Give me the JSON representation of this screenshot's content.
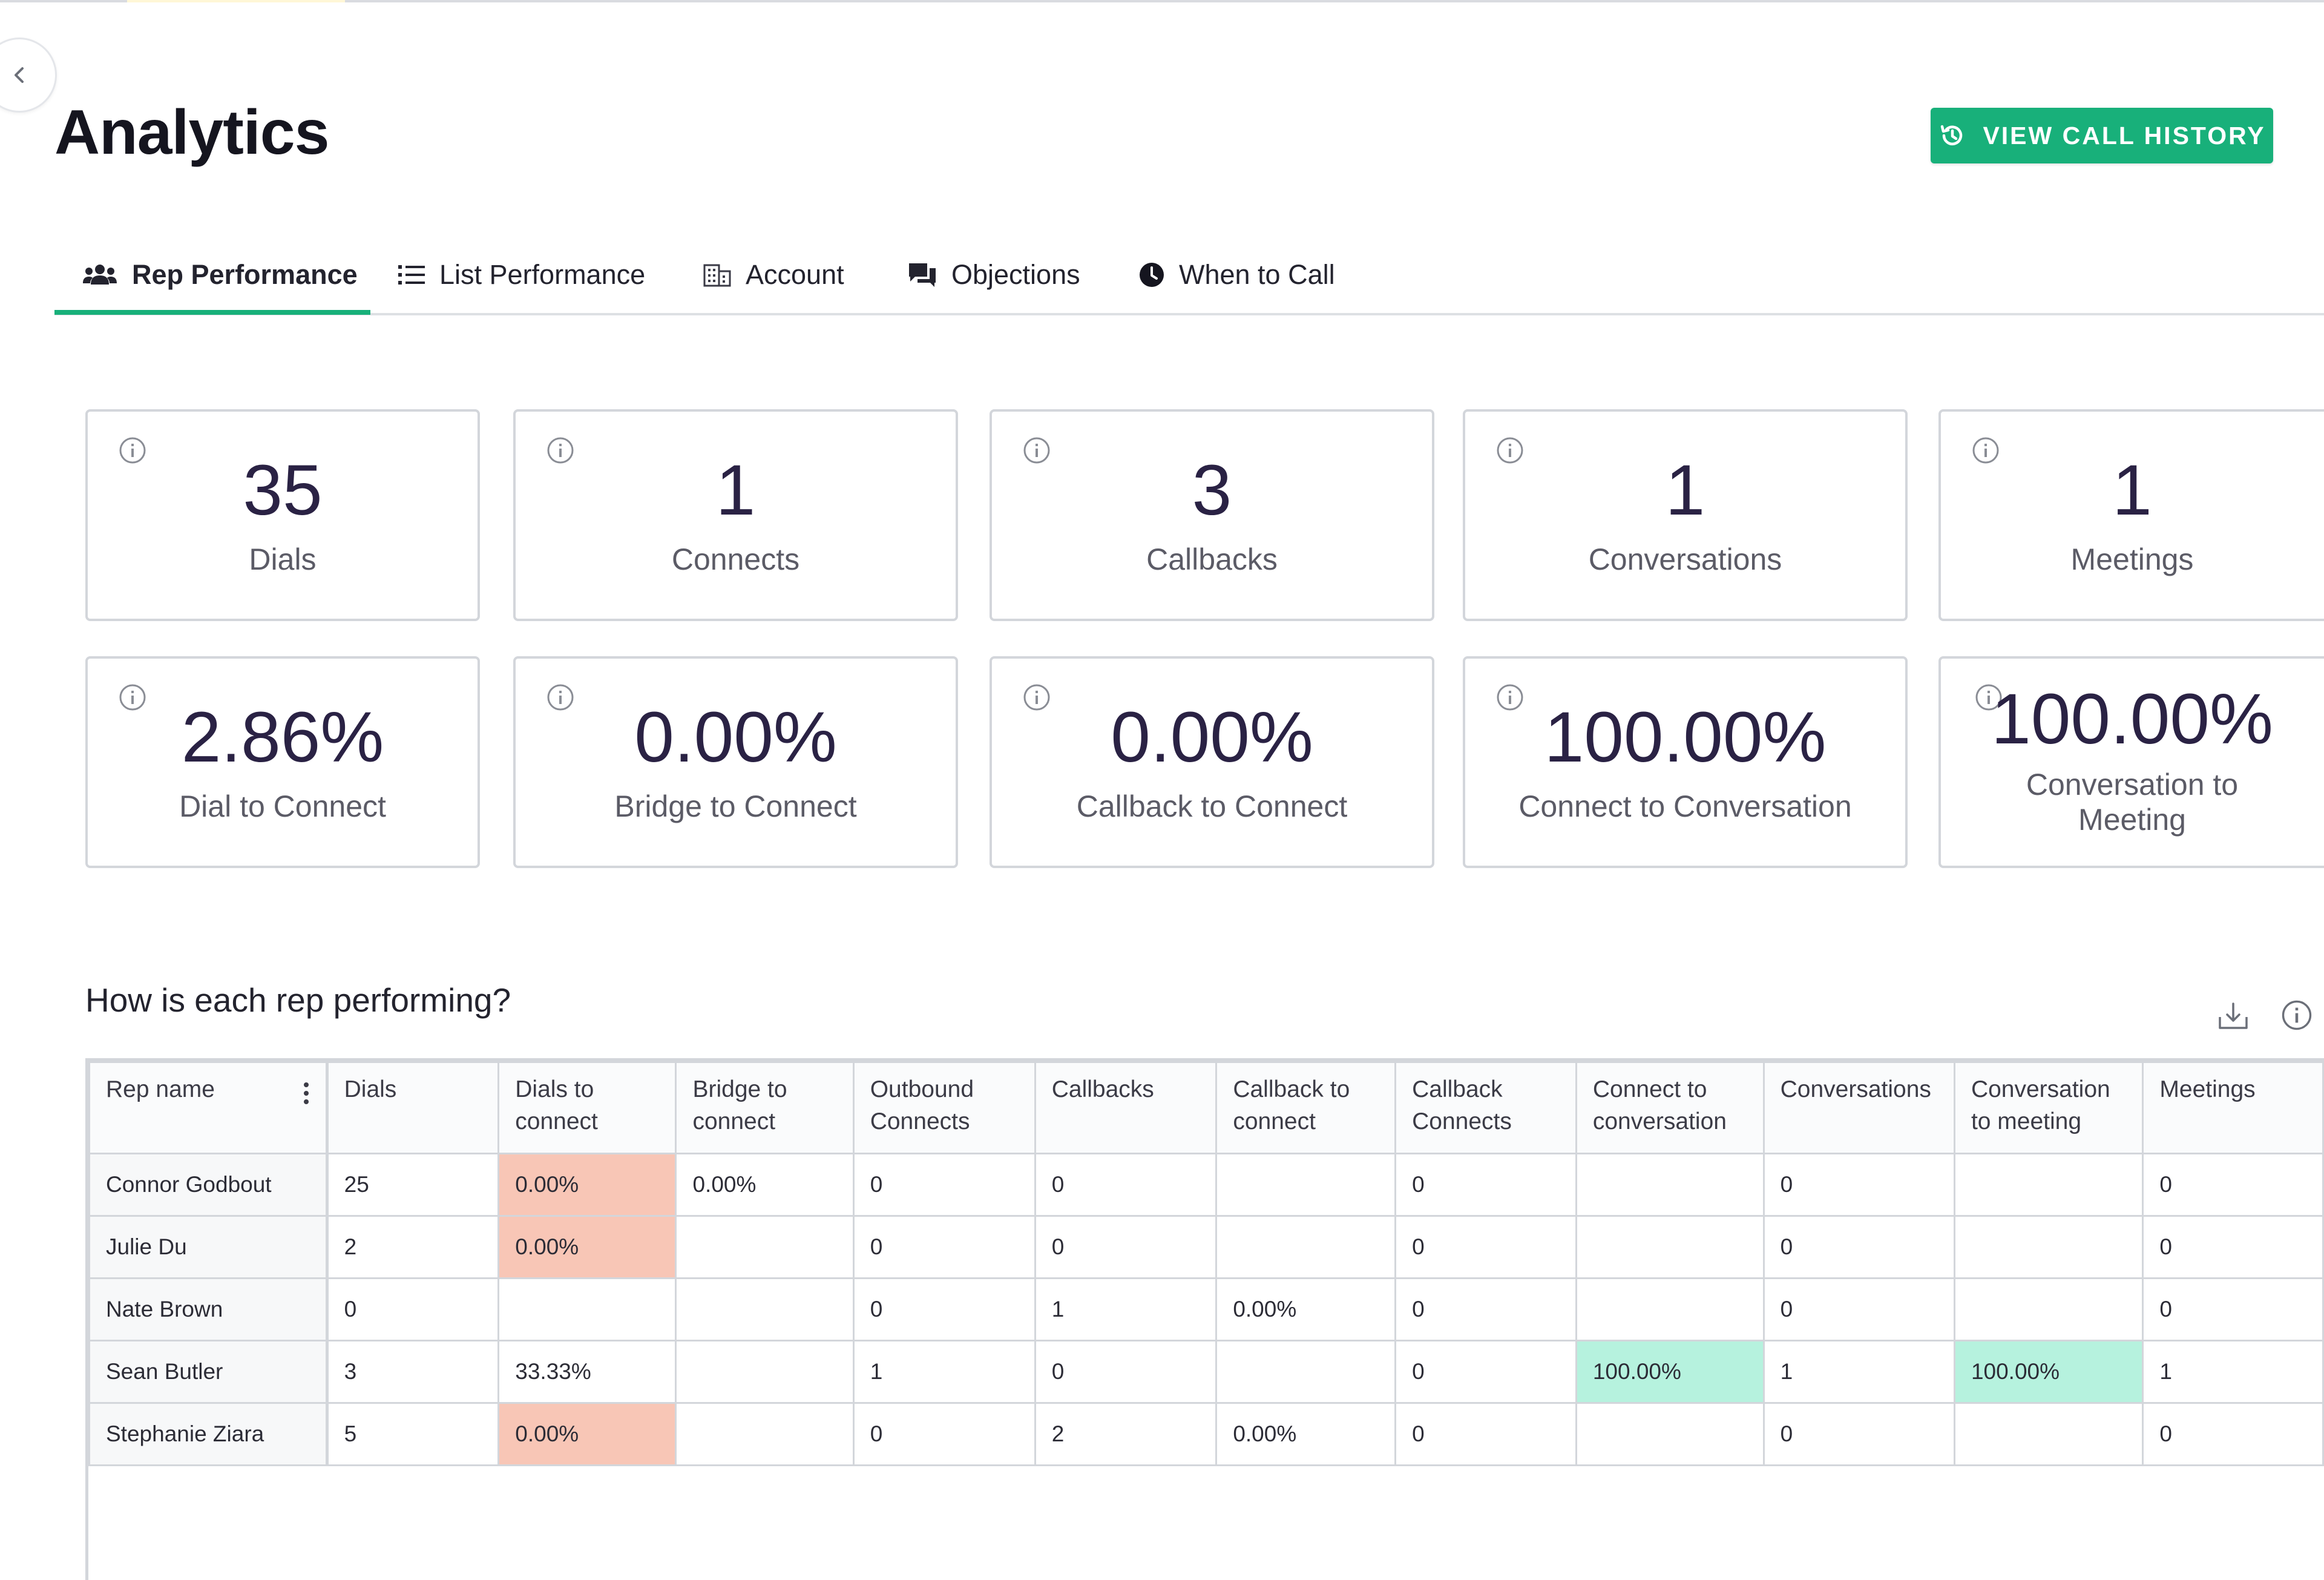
{
  "header": {
    "title": "Analytics",
    "history_button": "VIEW CALL HISTORY"
  },
  "tabs": [
    {
      "label": "Rep Performance",
      "icon": "users-icon",
      "active": true
    },
    {
      "label": "List Performance",
      "icon": "list-icon",
      "active": false
    },
    {
      "label": "Account",
      "icon": "building-icon",
      "active": false
    },
    {
      "label": "Objections",
      "icon": "chat-icon",
      "active": false
    },
    {
      "label": "When to Call",
      "icon": "clock-icon",
      "active": false
    }
  ],
  "stats": {
    "dials": {
      "value": "35",
      "label": "Dials"
    },
    "connects": {
      "value": "1",
      "label": "Connects"
    },
    "callbacks": {
      "value": "3",
      "label": "Callbacks"
    },
    "conversations": {
      "value": "1",
      "label": "Conversations"
    },
    "meetings": {
      "value": "1",
      "label": "Meetings"
    },
    "dial_to_connect": {
      "value": "2.86%",
      "label": "Dial to Connect"
    },
    "bridge_to_connect": {
      "value": "0.00%",
      "label": "Bridge to Connect"
    },
    "callback_to_connect": {
      "value": "0.00%",
      "label": "Callback to Connect"
    },
    "connect_to_conversation": {
      "value": "100.00%",
      "label": "Connect to Conversation"
    },
    "conversation_to_meeting": {
      "value": "100.00%",
      "label": "Conversation to Meeting"
    }
  },
  "rep_table": {
    "title": "How is each rep performing?",
    "columns": [
      "Rep name",
      "Dials",
      "Dials to connect",
      "Bridge to connect",
      "Outbound Connects",
      "Callbacks",
      "Callback to connect",
      "Callback Connects",
      "Connect to conversation",
      "Conversations",
      "Conversation to meeting",
      "Meetings"
    ],
    "rows": [
      [
        "Connor Godbout",
        "25",
        "0.00%",
        "0.00%",
        "0",
        "0",
        "",
        "0",
        "",
        "0",
        "",
        "0"
      ],
      [
        "Julie Du",
        "2",
        "0.00%",
        "",
        "0",
        "0",
        "",
        "0",
        "",
        "0",
        "",
        "0"
      ],
      [
        "Nate Brown",
        "0",
        "",
        "",
        "0",
        "1",
        "0.00%",
        "0",
        "",
        "0",
        "",
        "0"
      ],
      [
        "Sean Butler",
        "3",
        "33.33%",
        "",
        "1",
        "0",
        "",
        "0",
        "100.00%",
        "1",
        "100.00%",
        "1"
      ],
      [
        "Stephanie Ziara",
        "5",
        "0.00%",
        "",
        "0",
        "2",
        "0.00%",
        "0",
        "",
        "0",
        "",
        "0"
      ]
    ],
    "highlights": {
      "low": "#f8c6b6",
      "high": "#b6f2de"
    }
  },
  "colors": {
    "accent": "#18b07a",
    "value_text": "#2a2244"
  }
}
